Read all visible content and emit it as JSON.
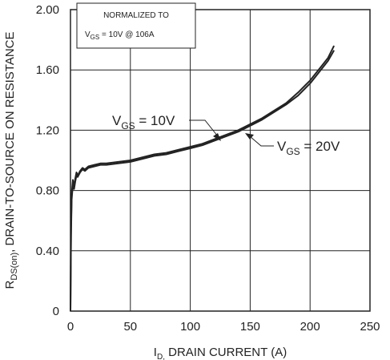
{
  "chart_data": {
    "type": "line",
    "xlabel_main": "I",
    "xlabel_sub": "D,",
    "xlabel_rest": " DRAIN CURRENT (A)",
    "ylabel_main": "R",
    "ylabel_sub": "DS(on)",
    "ylabel_rest": ", DRAIN-TO-SOURCE ON RESISTANCE",
    "xlim": [
      0,
      250
    ],
    "ylim": [
      0,
      2.0
    ],
    "x_ticks": [
      "0",
      "50",
      "100",
      "150",
      "200",
      "250"
    ],
    "y_ticks": [
      "0",
      "0.40",
      "0.80",
      "1.20",
      "1.60",
      "2.00"
    ],
    "grid": true,
    "legend_box": {
      "line1": "NORMALIZED TO",
      "line2_main": "V",
      "line2_sub": "GS",
      "line2_rest": " = 10V  @  106A"
    },
    "annotations": [
      {
        "main": "V",
        "sub": "GS",
        "rest": " = 10V",
        "target": [
          122,
          1.12
        ]
      },
      {
        "main": "V",
        "sub": "GS",
        "rest": " = 20V",
        "target": [
          140,
          1.18
        ]
      }
    ],
    "series": [
      {
        "x": [
          0,
          0.5,
          1,
          2,
          3,
          4,
          5,
          6,
          8,
          10,
          12,
          15,
          20,
          25,
          30,
          40,
          50,
          60,
          70,
          80,
          90,
          100,
          110,
          120,
          130,
          140,
          150,
          160,
          170,
          180,
          190,
          200,
          205,
          210,
          215,
          220
        ],
        "y": [
          0.0,
          0.55,
          0.78,
          0.87,
          0.83,
          0.88,
          0.92,
          0.9,
          0.93,
          0.95,
          0.94,
          0.96,
          0.97,
          0.98,
          0.98,
          0.99,
          1.0,
          1.02,
          1.04,
          1.05,
          1.07,
          1.09,
          1.11,
          1.14,
          1.17,
          1.2,
          1.24,
          1.28,
          1.33,
          1.38,
          1.45,
          1.53,
          1.58,
          1.63,
          1.68,
          1.76
        ]
      },
      {
        "x": [
          0,
          0.5,
          1,
          2,
          3,
          4,
          5,
          6,
          8,
          10,
          12,
          15,
          20,
          25,
          30,
          40,
          50,
          60,
          70,
          80,
          90,
          100,
          110,
          120,
          130,
          140,
          150,
          160,
          170,
          180,
          190,
          200,
          205,
          210,
          215,
          220
        ],
        "y": [
          0.0,
          0.5,
          0.74,
          0.84,
          0.81,
          0.86,
          0.9,
          0.89,
          0.92,
          0.94,
          0.93,
          0.95,
          0.96,
          0.97,
          0.97,
          0.98,
          0.99,
          1.01,
          1.03,
          1.04,
          1.06,
          1.08,
          1.1,
          1.13,
          1.16,
          1.19,
          1.23,
          1.27,
          1.32,
          1.37,
          1.43,
          1.51,
          1.56,
          1.61,
          1.66,
          1.73
        ]
      }
    ]
  }
}
